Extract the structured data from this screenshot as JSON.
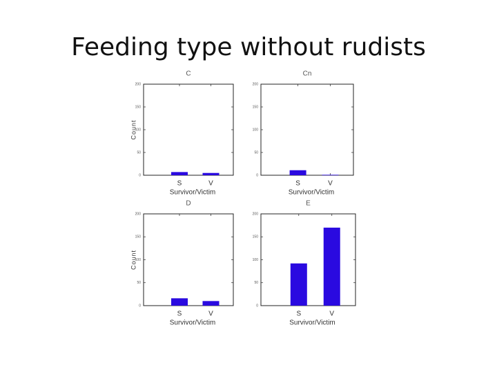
{
  "title": "Feeding type without rudists",
  "chart_data": [
    {
      "type": "bar",
      "title": "C",
      "categories": [
        "S",
        "V"
      ],
      "values": [
        7,
        5
      ],
      "xlabel": "Survivor/Victim",
      "ylabel": "Count",
      "ylim": [
        0,
        200
      ],
      "yticks": [
        0,
        50,
        100,
        150,
        200
      ],
      "color": "#2a0ae0"
    },
    {
      "type": "bar",
      "title": "Cn",
      "categories": [
        "S",
        "V"
      ],
      "values": [
        11,
        1
      ],
      "xlabel": "Survivor/Victim",
      "ylim": [
        0,
        200
      ],
      "yticks": [
        0,
        50,
        100,
        150,
        200
      ],
      "color": "#2a0ae0"
    },
    {
      "type": "bar",
      "title": "D",
      "categories": [
        "S",
        "V"
      ],
      "values": [
        16,
        10
      ],
      "xlabel": "Survivor/Victim",
      "ylabel": "Count",
      "ylim": [
        0,
        200
      ],
      "yticks": [
        0,
        50,
        100,
        150,
        200
      ],
      "color": "#2a0ae0"
    },
    {
      "type": "bar",
      "title": "E",
      "categories": [
        "S",
        "V"
      ],
      "values": [
        92,
        170
      ],
      "xlabel": "Survivor/Victim",
      "ylim": [
        0,
        200
      ],
      "yticks": [
        0,
        50,
        100,
        150,
        200
      ],
      "color": "#2a0ae0"
    }
  ]
}
